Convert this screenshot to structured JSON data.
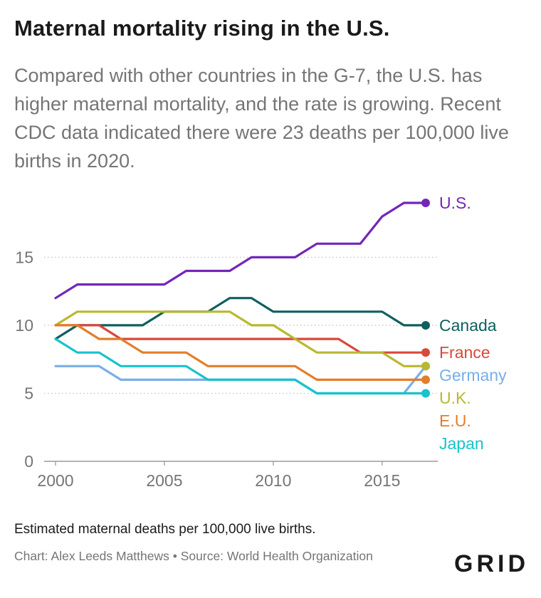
{
  "header": {
    "title": "Maternal mortality rising in the U.S.",
    "subtitle": "Compared with other countries in the G-7, the U.S. has higher maternal mortality, and the rate is growing. Recent CDC data indicated there were 23 deaths per 100,000 live births in 2020."
  },
  "footer": {
    "note": "Estimated maternal deaths per 100,000 live births.",
    "credit": "Chart: Alex Leeds Matthews • Source: World Health Organization",
    "logo": "GRID"
  },
  "chart_data": {
    "type": "line",
    "x": [
      2000,
      2001,
      2002,
      2003,
      2004,
      2005,
      2006,
      2007,
      2008,
      2009,
      2010,
      2011,
      2012,
      2013,
      2014,
      2015,
      2016,
      2017
    ],
    "xlim": [
      2000,
      2017
    ],
    "ylim": [
      0,
      19
    ],
    "xticks": [
      "2000",
      "2005",
      "2010",
      "2015"
    ],
    "yticks": [
      "0",
      "5",
      "10",
      "15"
    ],
    "grid": "horizontal dotted",
    "legend": "direct labels at right",
    "series": [
      {
        "name": "U.S.",
        "color": "#7326b8",
        "values": [
          12,
          13,
          13,
          13,
          13,
          13,
          14,
          14,
          14,
          15,
          15,
          15,
          16,
          16,
          16,
          18,
          19,
          19
        ]
      },
      {
        "name": "Canada",
        "color": "#0e5f5f",
        "values": [
          9,
          10,
          10,
          10,
          10,
          11,
          11,
          11,
          12,
          12,
          11,
          11,
          11,
          11,
          11,
          11,
          10,
          10
        ]
      },
      {
        "name": "France",
        "color": "#d9483b",
        "values": [
          10,
          10,
          10,
          9,
          9,
          9,
          9,
          9,
          9,
          9,
          9,
          9,
          9,
          9,
          8,
          8,
          8,
          8
        ]
      },
      {
        "name": "Germany",
        "color": "#78aee8",
        "values": [
          7,
          7,
          7,
          6,
          6,
          6,
          6,
          6,
          6,
          6,
          6,
          6,
          5,
          5,
          5,
          5,
          5,
          7
        ]
      },
      {
        "name": "U.K.",
        "color": "#b8b830",
        "values": [
          10,
          11,
          11,
          11,
          11,
          11,
          11,
          11,
          11,
          10,
          10,
          9,
          8,
          8,
          8,
          8,
          7,
          7
        ]
      },
      {
        "name": "E.U.",
        "color": "#e37e2a",
        "values": [
          10,
          10,
          9,
          9,
          8,
          8,
          8,
          7,
          7,
          7,
          7,
          7,
          6,
          6,
          6,
          6,
          6,
          6
        ]
      },
      {
        "name": "Japan",
        "color": "#17c3cc",
        "values": [
          9,
          8,
          8,
          7,
          7,
          7,
          7,
          6,
          6,
          6,
          6,
          6,
          5,
          5,
          5,
          5,
          5,
          5
        ]
      }
    ]
  }
}
